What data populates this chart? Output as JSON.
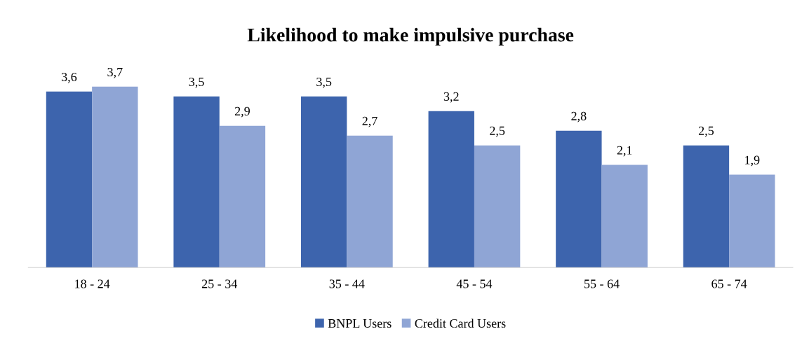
{
  "chart_data": {
    "type": "bar",
    "title": "Likelihood to make impulsive purchase",
    "categories": [
      "18 - 24",
      "25 - 34",
      "35 - 44",
      "45 - 54",
      "55 - 64",
      "65 - 74"
    ],
    "series": [
      {
        "name": "BNPL Users",
        "color": "#3d64ad",
        "values": [
          3.6,
          3.5,
          3.5,
          3.2,
          2.8,
          2.5
        ],
        "value_labels": [
          "3,6",
          "3,5",
          "3,5",
          "3,2",
          "2,8",
          "2,5"
        ]
      },
      {
        "name": "Credit Card Users",
        "color": "#8fa5d5",
        "values": [
          3.7,
          2.9,
          2.7,
          2.5,
          2.1,
          1.9
        ],
        "value_labels": [
          "3,7",
          "2,9",
          "2,7",
          "2,5",
          "2,1",
          "1,9"
        ]
      }
    ],
    "tick_labels": "x",
    "grid": false,
    "legend": "bottom"
  }
}
